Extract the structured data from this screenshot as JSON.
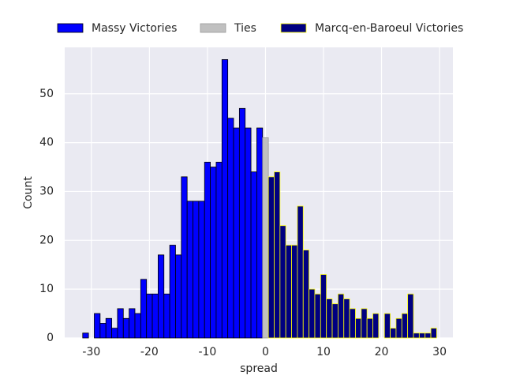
{
  "chart_data": {
    "type": "histogram",
    "xlabel": "spread",
    "ylabel": "Count",
    "xlim": [
      -34.6,
      32.3
    ],
    "ylim": [
      0,
      59.5
    ],
    "xticks": [
      -30,
      -20,
      -10,
      0,
      10,
      20,
      30
    ],
    "yticks": [
      0,
      10,
      20,
      30,
      40,
      50
    ],
    "grid": true,
    "legend": "top",
    "series": [
      {
        "name": "Massy Victories",
        "color": "#0000ff",
        "edgecolor": "#000000",
        "bins": [
          -31.5,
          -30.5,
          -29.5,
          -28.5,
          -27.5,
          -26.5,
          -25.5,
          -24.5,
          -23.5,
          -22.5,
          -21.5,
          -20.5,
          -19.5,
          -18.5,
          -17.5,
          -16.5,
          -15.5,
          -14.5,
          -13.5,
          -12.5,
          -11.5,
          -10.5,
          -9.5,
          -8.5,
          -7.5,
          -6.5,
          -5.5,
          -4.5,
          -3.5,
          -2.5,
          -1.5,
          -0.5
        ],
        "values": [
          1,
          0,
          5,
          3,
          4,
          2,
          6,
          4,
          6,
          5,
          12,
          9,
          9,
          17,
          9,
          19,
          17,
          33,
          28,
          28,
          28,
          36,
          35,
          36,
          57,
          45,
          43,
          47,
          43,
          34,
          43
        ]
      },
      {
        "name": "Ties",
        "color": "#c0c0c0",
        "edgecolor": "#9a9a9a",
        "bins": [
          -0.5,
          0.5
        ],
        "values": [
          41
        ]
      },
      {
        "name": "Marcq-en-Baroeul Victories",
        "color": "#000080",
        "edgecolor": "#ffff00",
        "bins": [
          0.5,
          1.5,
          2.5,
          3.5,
          4.5,
          5.5,
          6.5,
          7.5,
          8.5,
          9.5,
          10.5,
          11.5,
          12.5,
          13.5,
          14.5,
          15.5,
          16.5,
          17.5,
          18.5,
          19.5,
          20.5,
          21.5,
          22.5,
          23.5,
          24.5,
          25.5,
          26.5,
          27.5,
          28.5,
          29.5
        ],
        "values": [
          33,
          34,
          23,
          19,
          19,
          27,
          18,
          10,
          9,
          13,
          8,
          7,
          9,
          8,
          6,
          4,
          6,
          4,
          5,
          0,
          5,
          2,
          4,
          5,
          9,
          1,
          1,
          1,
          2
        ]
      }
    ]
  }
}
